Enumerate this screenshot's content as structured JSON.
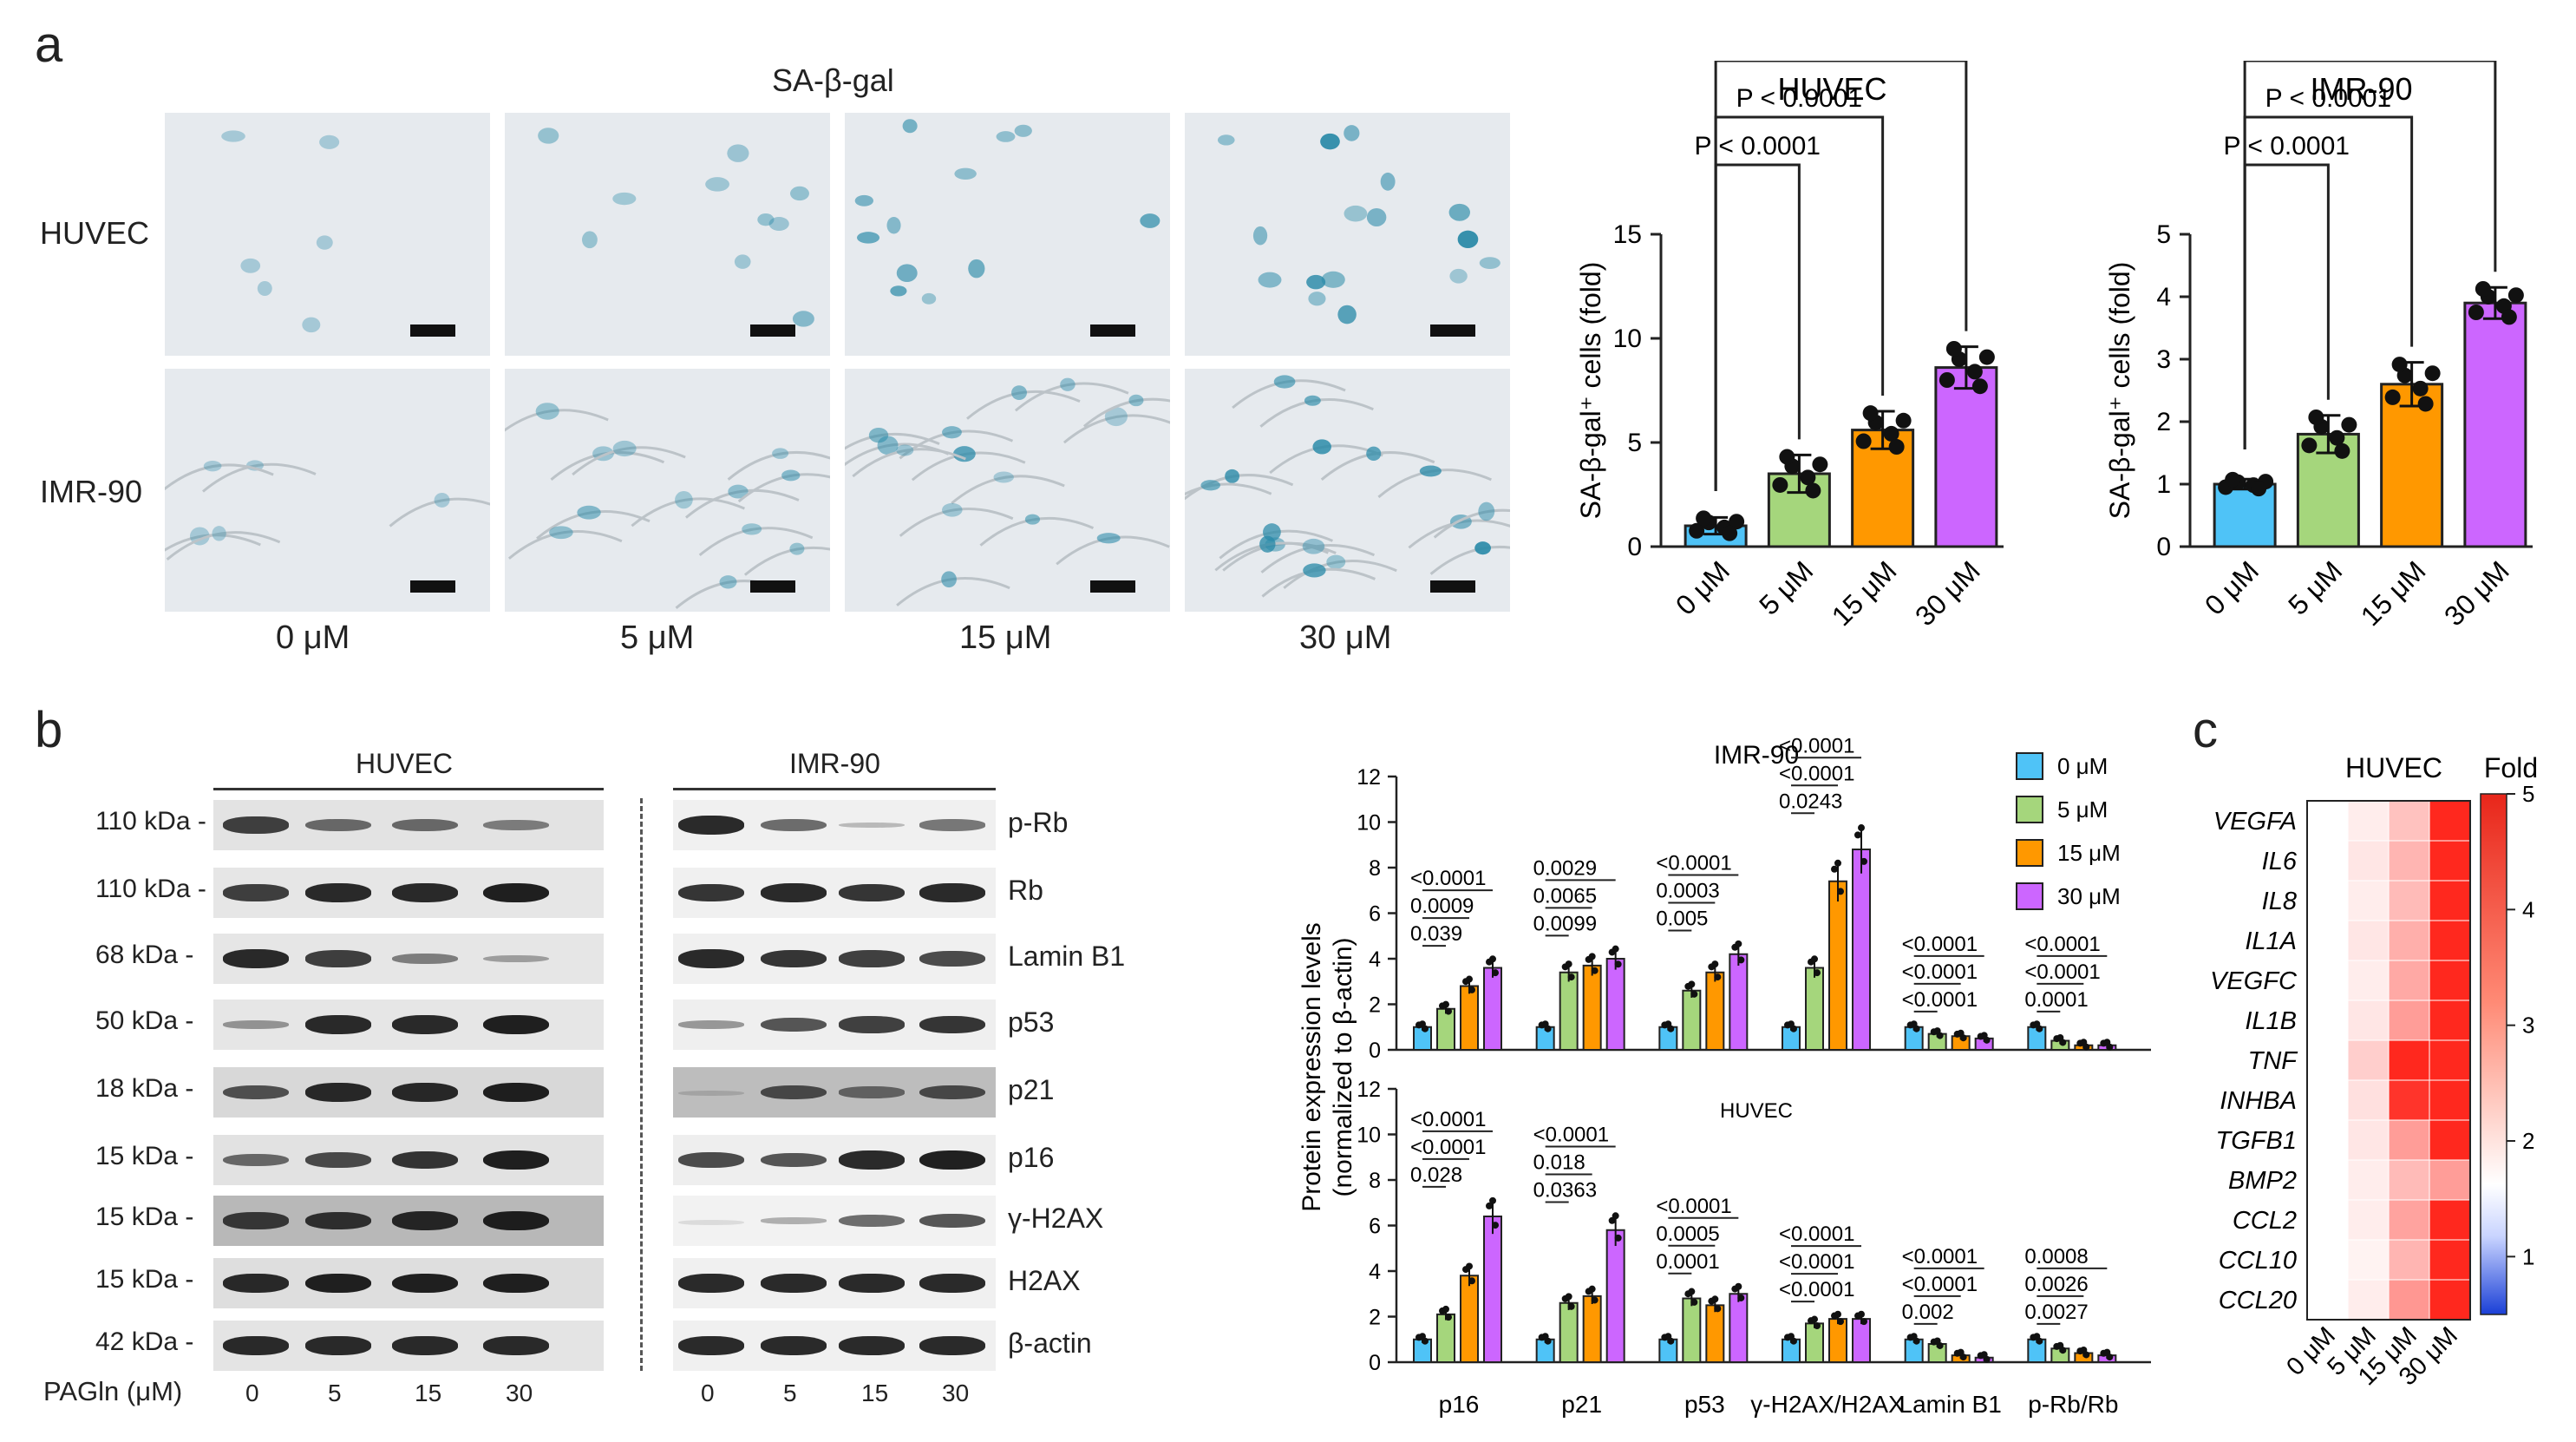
{
  "panel_labels": {
    "a": "a",
    "b": "b",
    "c": "c"
  },
  "panel_a": {
    "stain_title": "SA-β-gal",
    "row_labels": [
      "HUVEC",
      "IMR-90"
    ],
    "col_labels": [
      "0 μM",
      "5 μM",
      "15 μM",
      "30 μM"
    ]
  },
  "panel_b_blot": {
    "huvec_header": "HUVEC",
    "imr90_header": "IMR-90",
    "kda_labels": [
      "110 kDa",
      "110 kDa",
      "68 kDa",
      "50 kDa",
      "18 kDa",
      "15 kDa",
      "15 kDa",
      "15 kDa",
      "42 kDa"
    ],
    "protein_labels": [
      "p-Rb",
      "Rb",
      "Lamin B1",
      "p53",
      "p21",
      "p16",
      "γ-H2AX",
      "H2AX",
      "β-actin"
    ],
    "pagln_label": "PAGln (μM)",
    "dose_ticks_huvec": [
      "0",
      "5",
      "15",
      "30"
    ],
    "dose_ticks_imr90": [
      "0",
      "5",
      "15",
      "30"
    ]
  },
  "panel_c": {
    "title": "HUVEC",
    "fold_label": "Fold",
    "genes": [
      "VEGFA",
      "IL6",
      "IL8",
      "IL1A",
      "VEGFC",
      "IL1B",
      "TNF",
      "INHBA",
      "TGFB1",
      "BMP2",
      "CCL2",
      "CCL10",
      "CCL20"
    ],
    "doses": [
      "0 μM",
      "5 μM",
      "15 μM",
      "30 μM"
    ],
    "colorbar_ticks": [
      "5",
      "4",
      "3",
      "2",
      "1"
    ]
  },
  "chart_data": [
    {
      "type": "bar",
      "title": "HUVEC",
      "ylabel": "SA-β-gal⁺ cells (fold)",
      "categories": [
        "0 μM",
        "5 μM",
        "15 μM",
        "30 μM"
      ],
      "values": [
        1.0,
        3.5,
        5.6,
        8.6
      ],
      "errors": [
        0.4,
        0.9,
        0.9,
        1.0
      ],
      "ylim": [
        0,
        15
      ],
      "yticks": [
        "0",
        "5",
        "10",
        "15"
      ],
      "colors": [
        "#4fc3f7",
        "#a5d67c",
        "#ff9800",
        "#cc66ff"
      ],
      "annotations": [
        "P < 0.0001",
        "P < 0.0001",
        "P < 0.0001"
      ]
    },
    {
      "type": "bar",
      "title": "IMR-90",
      "ylabel": "SA-β-gal⁺ cells (fold)",
      "categories": [
        "0 μM",
        "5 μM",
        "15 μM",
        "30 μM"
      ],
      "values": [
        1.0,
        1.8,
        2.6,
        3.9
      ],
      "errors": [
        0.08,
        0.3,
        0.35,
        0.25
      ],
      "ylim": [
        0,
        5
      ],
      "yticks": [
        "0",
        "1",
        "2",
        "3",
        "4",
        "5"
      ],
      "colors": [
        "#4fc3f7",
        "#a5d67c",
        "#ff9800",
        "#cc66ff"
      ],
      "annotations": [
        "P < 0.0001",
        "P < 0.0001",
        "P < 0.0001"
      ]
    },
    {
      "type": "bar",
      "title": "IMR-90",
      "ylabel": "Protein expression levels (normalized to β-actin)",
      "categories": [
        "p16",
        "p21",
        "p53",
        "γ-H2AX/H2AX",
        "Lamin B1",
        "p-Rb/Rb"
      ],
      "ylim": [
        0,
        12
      ],
      "yticks": [
        "0",
        "2",
        "4",
        "6",
        "8",
        "10",
        "12"
      ],
      "series": [
        {
          "name": "0 μM",
          "values": [
            1.0,
            1.0,
            1.0,
            1.0,
            1.0,
            1.0
          ]
        },
        {
          "name": "5 μM",
          "values": [
            1.8,
            3.4,
            2.6,
            3.6,
            0.7,
            0.4
          ]
        },
        {
          "name": "15 μM",
          "values": [
            2.8,
            3.7,
            3.4,
            7.4,
            0.6,
            0.2
          ]
        },
        {
          "name": "30 μM",
          "values": [
            3.6,
            4.0,
            4.2,
            8.8,
            0.5,
            0.2
          ]
        }
      ],
      "pvalues": [
        [
          "<0.0001",
          "0.0009",
          "0.039"
        ],
        [
          "0.0029",
          "0.0065",
          "0.0099"
        ],
        [
          "<0.0001",
          "0.0003",
          "0.005"
        ],
        [
          "<0.0001",
          "<0.0001",
          "0.0243"
        ],
        [
          "<0.0001",
          "<0.0001",
          "<0.0001"
        ],
        [
          "<0.0001",
          "<0.0001",
          "0.0001"
        ]
      ]
    },
    {
      "type": "bar",
      "title": "HUVEC",
      "categories": [
        "p16",
        "p21",
        "p53",
        "γ-H2AX/H2AX",
        "Lamin B1",
        "p-Rb/Rb"
      ],
      "ylim": [
        0,
        12
      ],
      "yticks": [
        "0",
        "2",
        "4",
        "6",
        "8",
        "10",
        "12"
      ],
      "series": [
        {
          "name": "0 μM",
          "values": [
            1.0,
            1.0,
            1.0,
            1.0,
            1.0,
            1.0
          ]
        },
        {
          "name": "5 μM",
          "values": [
            2.1,
            2.6,
            2.8,
            1.7,
            0.8,
            0.6
          ]
        },
        {
          "name": "15 μM",
          "values": [
            3.8,
            2.9,
            2.5,
            1.9,
            0.3,
            0.4
          ]
        },
        {
          "name": "30 μM",
          "values": [
            6.4,
            5.8,
            3.0,
            1.9,
            0.2,
            0.3
          ]
        }
      ],
      "pvalues": [
        [
          "<0.0001",
          "<0.0001",
          "0.028"
        ],
        [
          "<0.0001",
          "0.018",
          "0.0363"
        ],
        [
          "<0.0001",
          "0.0005",
          "0.0001"
        ],
        [
          "<0.0001",
          "<0.0001",
          "<0.0001"
        ],
        [
          "<0.0001",
          "<0.0001",
          "0.002"
        ],
        [
          "0.0008",
          "0.0026",
          "0.0027"
        ]
      ],
      "legend": [
        "0 μM",
        "5 μM",
        "15 μM",
        "30 μM"
      ]
    },
    {
      "type": "heatmap",
      "title": "HUVEC",
      "rows": [
        "VEGFA",
        "IL6",
        "IL8",
        "IL1A",
        "VEGFC",
        "IL1B",
        "TNF",
        "INHBA",
        "TGFB1",
        "BMP2",
        "CCL2",
        "CCL10",
        "CCL20"
      ],
      "columns": [
        "0 μM",
        "5 μM",
        "15 μM",
        "30 μM"
      ],
      "values": [
        [
          1.0,
          1.3,
          2.0,
          4.5
        ],
        [
          1.0,
          1.4,
          2.2,
          4.5
        ],
        [
          1.0,
          1.3,
          2.1,
          4.5
        ],
        [
          1.0,
          1.4,
          2.3,
          4.5
        ],
        [
          1.0,
          1.3,
          2.4,
          4.5
        ],
        [
          1.0,
          1.4,
          2.6,
          4.5
        ],
        [
          1.0,
          1.8,
          4.5,
          4.5
        ],
        [
          1.0,
          1.5,
          4.3,
          4.5
        ],
        [
          1.0,
          1.4,
          2.6,
          4.5
        ],
        [
          1.0,
          1.3,
          2.1,
          2.6
        ],
        [
          1.0,
          1.3,
          2.5,
          4.5
        ],
        [
          1.0,
          1.2,
          2.2,
          4.5
        ],
        [
          1.0,
          1.3,
          2.7,
          4.5
        ]
      ],
      "range": [
        0.5,
        5
      ]
    }
  ]
}
